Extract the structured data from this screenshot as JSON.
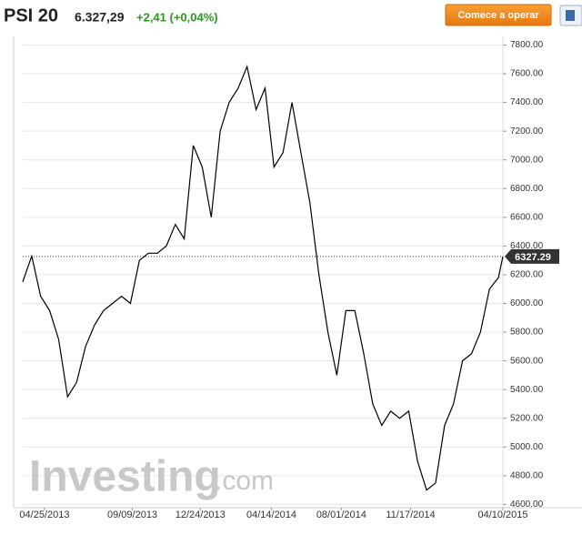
{
  "header": {
    "title": "PSI 20",
    "price": "6.327,29",
    "change": "+2,41 (+0,04%)",
    "button": "Comece a operar"
  },
  "chart_data": {
    "type": "line",
    "color": "#000000",
    "x": [
      "2013-03-22",
      "2013-04-05",
      "2013-04-19",
      "2013-05-03",
      "2013-05-17",
      "2013-05-31",
      "2013-06-14",
      "2013-06-28",
      "2013-07-12",
      "2013-07-26",
      "2013-08-09",
      "2013-08-23",
      "2013-09-06",
      "2013-09-20",
      "2013-10-04",
      "2013-10-18",
      "2013-11-01",
      "2013-11-15",
      "2013-11-29",
      "2013-12-13",
      "2013-12-27",
      "2014-01-10",
      "2014-01-24",
      "2014-02-07",
      "2014-02-21",
      "2014-03-07",
      "2014-03-21",
      "2014-04-04",
      "2014-04-18",
      "2014-05-02",
      "2014-05-16",
      "2014-05-30",
      "2014-06-13",
      "2014-06-27",
      "2014-07-11",
      "2014-07-25",
      "2014-08-08",
      "2014-08-22",
      "2014-09-05",
      "2014-09-19",
      "2014-10-03",
      "2014-10-17",
      "2014-10-31",
      "2014-11-14",
      "2014-11-28",
      "2014-12-12",
      "2014-12-26",
      "2015-01-09",
      "2015-01-23",
      "2015-02-06",
      "2015-02-20",
      "2015-03-06",
      "2015-03-20",
      "2015-04-03",
      "2015-04-10"
    ],
    "values": [
      6150,
      6330,
      6050,
      5950,
      5750,
      5350,
      5450,
      5700,
      5850,
      5950,
      6000,
      6050,
      6000,
      6300,
      6350,
      6350,
      6400,
      6550,
      6450,
      7100,
      6950,
      6600,
      7200,
      7400,
      7500,
      7650,
      7350,
      7500,
      6950,
      7050,
      7400,
      7050,
      6700,
      6200,
      5800,
      5500,
      5950,
      5950,
      5650,
      5300,
      5150,
      5250,
      5200,
      5250,
      4900,
      4700,
      4750,
      5150,
      5300,
      5600,
      5650,
      5800,
      6100,
      6180,
      6327.29
    ],
    "last_price": 6327.29,
    "xlim": [
      "2013-03-22",
      "2015-04-10"
    ],
    "xticks": [
      {
        "value": "2013-04-25",
        "label": "04/25/2013"
      },
      {
        "value": "2013-09-09",
        "label": "09/09/2013"
      },
      {
        "value": "2013-12-24",
        "label": "12/24/2013"
      },
      {
        "value": "2014-04-14",
        "label": "04/14/2014"
      },
      {
        "value": "2014-08-01",
        "label": "08/01/2014"
      },
      {
        "value": "2014-11-17",
        "label": "11/17/2014"
      },
      {
        "value": "2015-04-10",
        "label": "04/10/2015"
      }
    ],
    "ylim": [
      4590,
      7860
    ],
    "yticks": [
      {
        "value": 4600,
        "label": "4600.00"
      },
      {
        "value": 4800,
        "label": "4800.00"
      },
      {
        "value": 5000,
        "label": "5000.00"
      },
      {
        "value": 5200,
        "label": "5200.00"
      },
      {
        "value": 5400,
        "label": "5400.00"
      },
      {
        "value": 5600,
        "label": "5600.00"
      },
      {
        "value": 5800,
        "label": "5800.00"
      },
      {
        "value": 6000,
        "label": "6000.00"
      },
      {
        "value": 6200,
        "label": "6200.00"
      },
      {
        "value": 6400,
        "label": "6400.00"
      },
      {
        "value": 6600,
        "label": "6600.00"
      },
      {
        "value": 6800,
        "label": "6800.00"
      },
      {
        "value": 7000,
        "label": "7000.00"
      },
      {
        "value": 7200,
        "label": "7200.00"
      },
      {
        "value": 7400,
        "label": "7400.00"
      },
      {
        "value": 7600,
        "label": "7600.00"
      },
      {
        "value": 7800,
        "label": "7800.00"
      }
    ],
    "grid": true,
    "watermark": {
      "brand": "Investing",
      "suffix": ".com"
    }
  }
}
